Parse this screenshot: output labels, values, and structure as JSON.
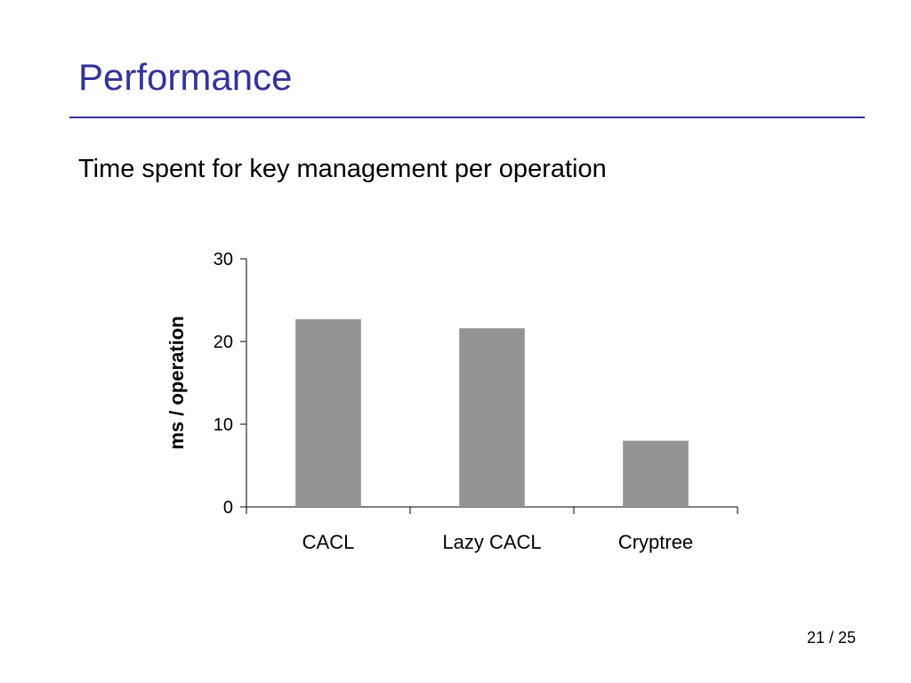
{
  "slide": {
    "title": "Performance",
    "subtitle": "Time spent for key management per operation",
    "page_number": "21 / 25",
    "title_color": "#33339a"
  },
  "chart_data": {
    "type": "bar",
    "title": "",
    "xlabel": "",
    "ylabel": "ms / operation",
    "categories": [
      "CACL",
      "Lazy CACL",
      "Cryptree"
    ],
    "values": [
      22.7,
      21.6,
      8.0
    ],
    "ylim": [
      0,
      30
    ],
    "yticks": [
      0,
      10,
      20,
      30
    ],
    "grid": false,
    "legend": "none",
    "bar_color": "#939393",
    "axis_color": "#000000"
  }
}
